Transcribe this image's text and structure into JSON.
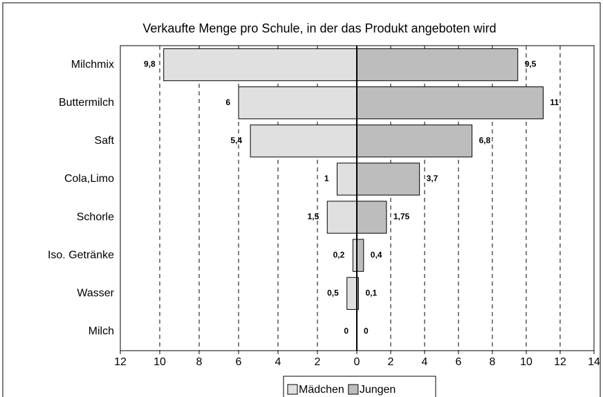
{
  "chart_data": {
    "type": "butterfly",
    "title": "Verkaufte Menge pro Schule, in der das Produkt angeboten wird",
    "categories": [
      "Milchmix",
      "Buttermilch",
      "Saft",
      "Cola,Limo",
      "Schorle",
      "Iso. Getränke",
      "Wasser",
      "Milch"
    ],
    "xlim": [
      12,
      0
    ],
    "xticks": [
      12,
      10,
      8,
      6,
      4,
      2,
      0
    ],
    "x2lim": [
      0,
      14
    ],
    "x2ticks": [
      2,
      4,
      6,
      8,
      10,
      12,
      14
    ],
    "grid": true,
    "series": [
      {
        "name": "Mädchen",
        "color": "#e0e0e0",
        "axis": "x",
        "values": [
          9.8,
          6,
          5.4,
          1,
          1.5,
          0.2,
          0.5,
          0
        ],
        "value_labels": [
          "9,8",
          "6",
          "5,4",
          "1",
          "1,5",
          "0,2",
          "0,5",
          "0"
        ]
      },
      {
        "name": "Jungen",
        "color": "#bdbdbd",
        "axis": "x2",
        "values": [
          9.5,
          11,
          6.8,
          3.7,
          1.75,
          0.4,
          0.1,
          0
        ],
        "value_labels": [
          "9,5",
          "11",
          "6,8",
          "3,7",
          "1,75",
          "0,4",
          "0,1",
          "0"
        ]
      }
    ]
  }
}
